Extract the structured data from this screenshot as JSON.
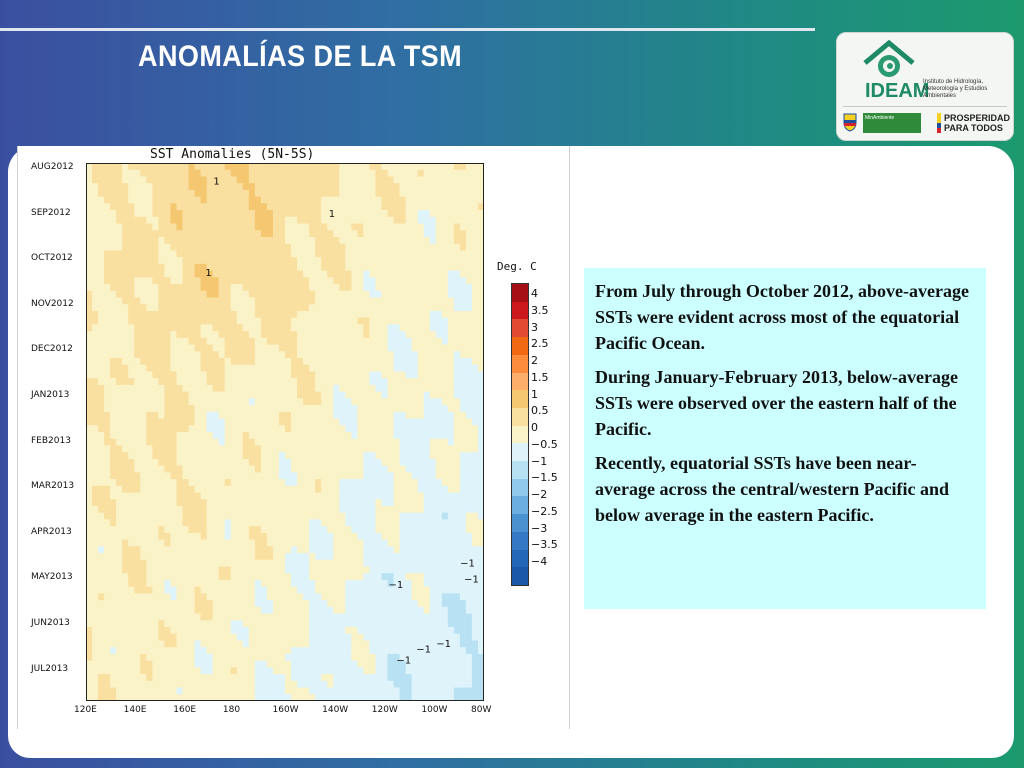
{
  "slide": {
    "title": "ANOMALÍAS DE LA TSM"
  },
  "logo": {
    "name": "IDEAM",
    "subtitle": "Instituto de Hidrología, Meteorología y Estudios Ambientales",
    "ministry": "MinAmbiente",
    "slogan": "PROSPERIDAD PARA TODOS"
  },
  "chart_data": {
    "type": "heatmap",
    "title": "SST Anomalies (5N-5S)",
    "legend_title": "Deg. C",
    "y_ticks": [
      "AUG2012",
      "SEP2012",
      "OCT2012",
      "NOV2012",
      "DEC2012",
      "JAN2013",
      "FEB2013",
      "MAR2013",
      "APR2013",
      "MAY2013",
      "JUN2013",
      "JUL2013"
    ],
    "x_ticks": [
      "120E",
      "140E",
      "160E",
      "180",
      "160W",
      "140W",
      "120W",
      "100W",
      "80W"
    ],
    "levels": [
      "4",
      "3.5",
      "3",
      "2.5",
      "2",
      "1.5",
      "1",
      "0.5",
      "0",
      "−0.5",
      "−1",
      "−1.5",
      "−2",
      "−2.5",
      "−3",
      "−3.5",
      "−4"
    ],
    "colors": [
      "#a50f15",
      "#cb181d",
      "#e34a33",
      "#f16913",
      "#fd8d3c",
      "#fdae6b",
      "#f5c770",
      "#f9dfa0",
      "#fbf3c8",
      "#dff3fb",
      "#b8e2f3",
      "#8fc9ec",
      "#6badde",
      "#4a91d0",
      "#3579c4",
      "#2368b8",
      "#1a57a8"
    ],
    "contour_labels": [
      "1",
      "1",
      "1",
      "−1",
      "−1",
      "−1",
      "−1",
      "−1",
      "−1"
    ]
  },
  "textbox": {
    "paragraphs": [
      "From July  through October 2012, above-average SSTs were evident across most of the equatorial Pacific Ocean.",
      "During January-February 2013, below-average SSTs were observed over the eastern half of the Pacific.",
      "Recently, equatorial SSTs have been near-average across the central/western Pacific and below average in the eastern Pacific."
    ]
  }
}
